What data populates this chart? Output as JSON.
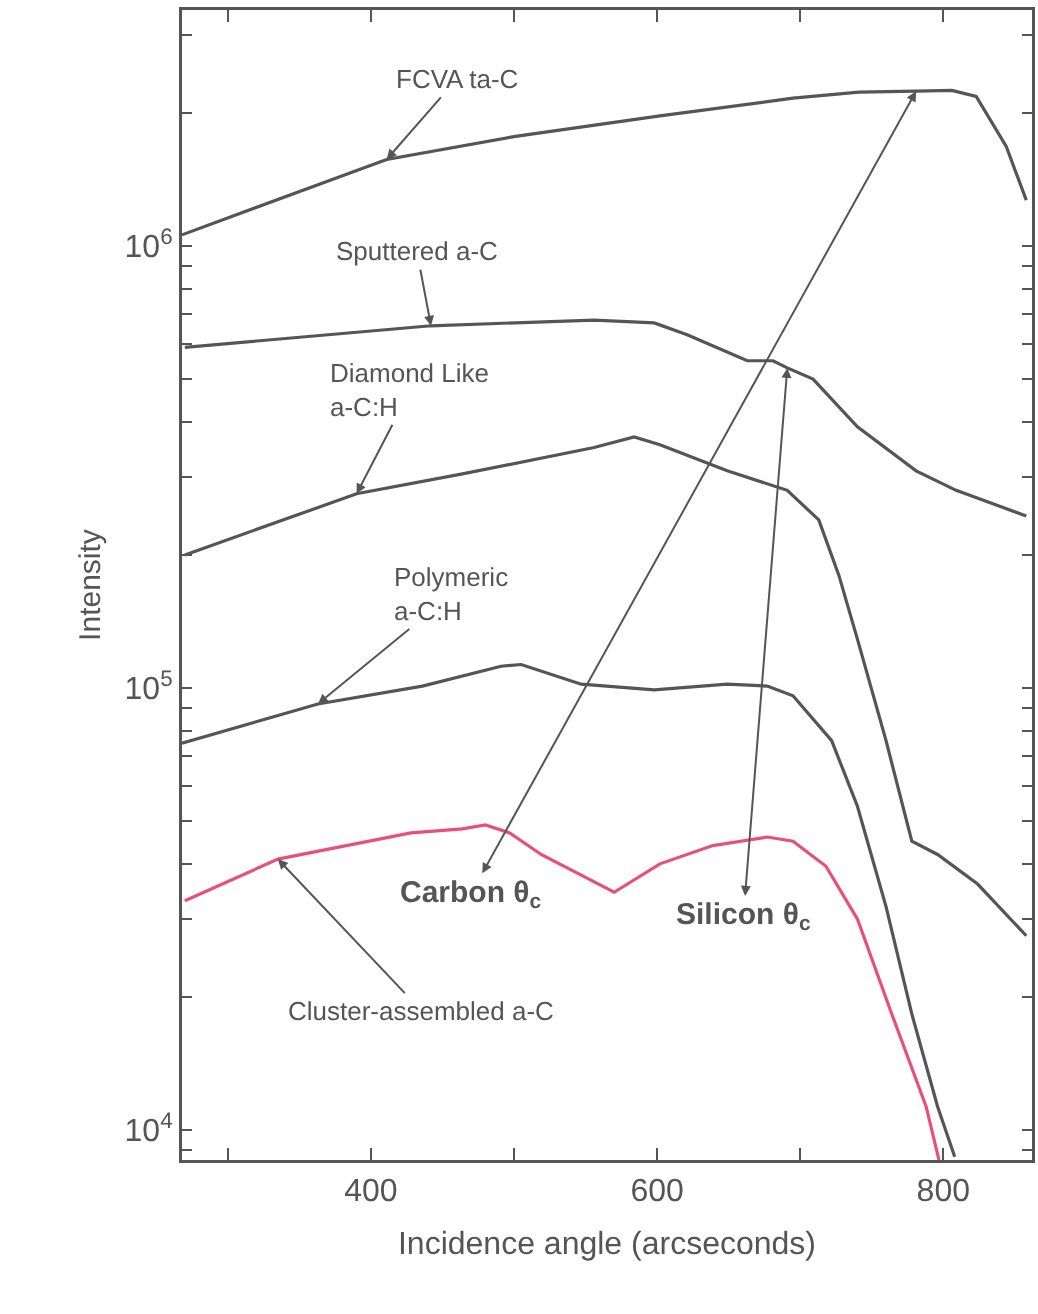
{
  "chart_data": {
    "type": "line",
    "xlabel": "Incidence angle (arcseconds)",
    "ylabel": "Intensity",
    "log": "y",
    "grid": false,
    "marker": "none",
    "line_style": "solid",
    "xlim": [
      268,
      862
    ],
    "ylim": [
      8550,
      3420000
    ],
    "xticks": [
      {
        "value": 300,
        "label": null
      },
      400,
      {
        "value": 500,
        "label": null
      },
      600,
      {
        "value": 700,
        "label": null
      },
      800
    ],
    "yticks": [
      {
        "value": 9000,
        "label": null
      },
      {
        "value": 10000,
        "label": "10$^{4}$"
      },
      {
        "value": 20000,
        "label": null
      },
      {
        "value": 30000,
        "label": null
      },
      {
        "value": 40000,
        "label": null
      },
      {
        "value": 50000,
        "label": null
      },
      {
        "value": 60000,
        "label": null
      },
      {
        "value": 70000,
        "label": null
      },
      {
        "value": 80000,
        "label": null
      },
      {
        "value": 90000,
        "label": null
      },
      {
        "value": 100000,
        "label": "10$^{5}$"
      },
      {
        "value": 200000,
        "label": null
      },
      {
        "value": 300000,
        "label": null
      },
      {
        "value": 400000,
        "label": null
      },
      {
        "value": 500000,
        "label": null
      },
      {
        "value": 600000,
        "label": null
      },
      {
        "value": 700000,
        "label": null
      },
      {
        "value": 800000,
        "label": null
      },
      {
        "value": 900000,
        "label": null
      },
      {
        "value": 1000000,
        "label": "10$^{6}$"
      },
      {
        "value": 2000000,
        "label": null
      },
      {
        "value": 3000000,
        "label": null
      }
    ],
    "series": [
      {
        "color": "#555555",
        "x": [
          268,
          411,
          501,
          602,
          695,
          741,
          781,
          806,
          823,
          844,
          858
        ],
        "values": [
          1060000,
          1570000,
          1770000,
          1970000,
          2160000,
          2230000,
          2240000,
          2250000,
          2180000,
          1680000,
          1270000
        ]
      },
      {
        "color": "#555555",
        "x": [
          270,
          442,
          556,
          598,
          621,
          663,
          681,
          691,
          709,
          740,
          781,
          809,
          858
        ],
        "values": [
          590000,
          660000,
          680000,
          670000,
          630000,
          550000,
          550000,
          530000,
          500000,
          390000,
          310000,
          280000,
          245000
        ]
      },
      {
        "color": "#555555",
        "x": [
          270,
          390,
          464,
          556,
          584,
          602,
          649,
          691,
          713,
          727,
          740,
          760,
          778,
          796,
          824,
          858
        ],
        "values": [
          200000,
          275000,
          305000,
          350000,
          370000,
          355000,
          310000,
          280000,
          240000,
          180000,
          129000,
          76000,
          45000,
          42000,
          36000,
          27500
        ]
      },
      {
        "color": "#555555",
        "x": [
          268,
          363,
          436,
          491,
          505,
          547,
          598,
          649,
          677,
          695,
          722,
          740,
          760,
          778,
          796,
          808
        ],
        "values": [
          75000,
          92000,
          101000,
          112000,
          113000,
          102000,
          99000,
          102000,
          101000,
          96000,
          76000,
          54000,
          32000,
          18300,
          11300,
          8700
        ]
      },
      {
        "color": "#e8507a",
        "x": [
          270,
          335,
          428,
          464,
          480,
          497,
          519,
          570,
          602,
          639,
          677,
          695,
          718,
          740,
          764,
          788,
          797
        ],
        "values": [
          33000,
          41000,
          47000,
          48000,
          49000,
          47000,
          42000,
          34500,
          40000,
          44000,
          46000,
          45000,
          39500,
          30000,
          18300,
          11300,
          8550
        ]
      }
    ],
    "annotations": [
      {
        "text": "FCVA ta-C",
        "x": 411,
        "y": 1570000
      },
      {
        "text": "Sputtered a-C",
        "x": 442,
        "y": 660000
      },
      {
        "text": "Diamond Like\na-C:H",
        "x": 390,
        "y": 275000
      },
      {
        "text": "Polymeric\na-C:H",
        "x": 363,
        "y": 92000
      },
      {
        "text": "Cluster-assembled a-C",
        "x": 335,
        "y": 41000
      },
      {
        "text": "Carbon θ$_{c}$",
        "x": 781,
        "y": 2240000
      },
      {
        "text": "Silicon θ$_{c}$",
        "x": 691,
        "y": 530000
      }
    ]
  }
}
